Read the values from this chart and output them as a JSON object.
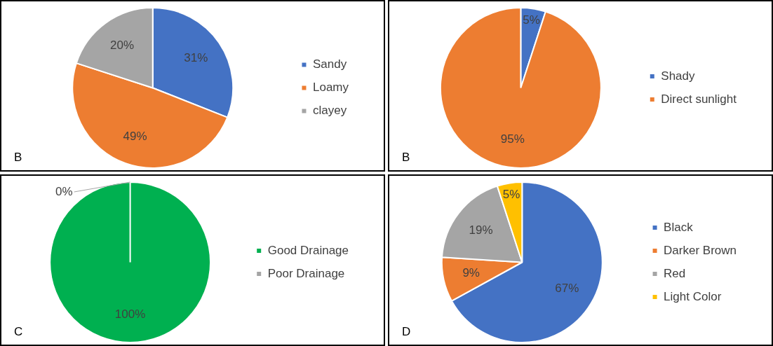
{
  "chart_data": [
    {
      "type": "pie",
      "categories": [
        "Sandy",
        "Loamy",
        "clayey"
      ],
      "values": [
        31,
        49,
        20
      ],
      "value_labels": [
        "31%",
        "49%",
        "20%"
      ],
      "colors": [
        "#4472c4",
        "#ed7d31",
        "#a5a5a5"
      ],
      "legend": "right",
      "annotations": [
        "B"
      ]
    },
    {
      "type": "pie",
      "categories": [
        "Shady",
        "Direct sunlight"
      ],
      "values": [
        5,
        95
      ],
      "value_labels": [
        "5%",
        "95%"
      ],
      "colors": [
        "#4472c4",
        "#ed7d31"
      ],
      "legend": "right",
      "annotations": [
        "B"
      ]
    },
    {
      "type": "pie",
      "categories": [
        "Good Drainage",
        "Poor Drainage"
      ],
      "values": [
        100,
        0
      ],
      "value_labels": [
        "100%",
        "0%"
      ],
      "colors": [
        "#00b050",
        "#a5a5a5"
      ],
      "legend": "right",
      "annotations": [
        "C"
      ]
    },
    {
      "type": "pie",
      "categories": [
        "Black",
        "Darker Brown",
        "Red",
        "Light Color"
      ],
      "values": [
        67,
        9,
        19,
        5
      ],
      "value_labels": [
        "67%",
        "9%",
        "19%",
        "5%"
      ],
      "colors": [
        "#4472c4",
        "#ed7d31",
        "#a5a5a5",
        "#ffc000"
      ],
      "legend": "right",
      "annotations": [
        "D"
      ]
    }
  ]
}
